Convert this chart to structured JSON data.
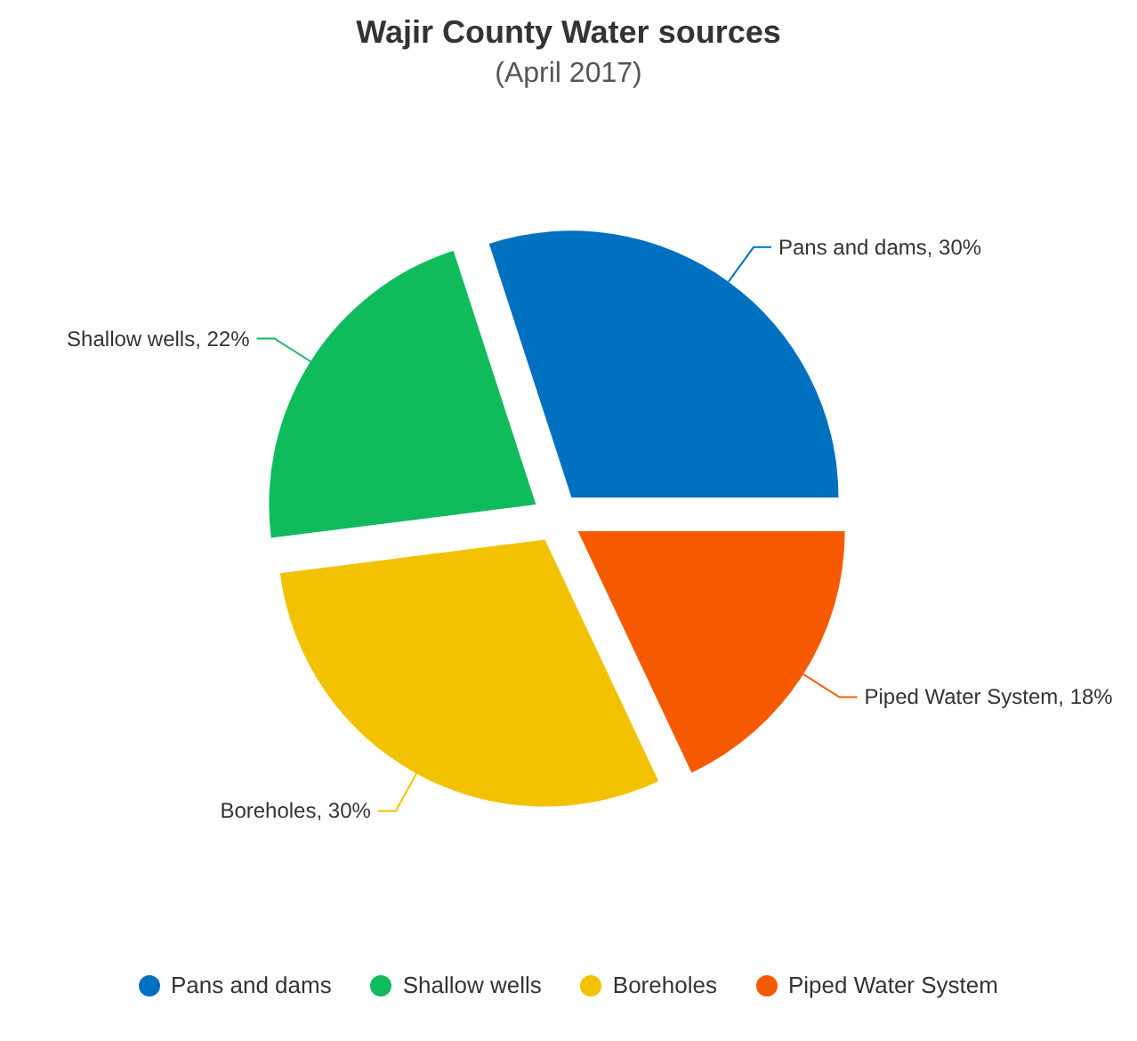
{
  "chart_data": {
    "type": "pie",
    "title": "Wajir County Water sources",
    "subtitle": "(April 2017)",
    "categories": [
      "Pans and dams",
      "Shallow wells",
      "Boreholes",
      "Piped Water System"
    ],
    "values": [
      30,
      22,
      30,
      18
    ],
    "colors": [
      "#0070c0",
      "#10bb5c",
      "#f2c200",
      "#f55a00"
    ],
    "value_labels": [
      "Pans and dams, 30%",
      "Shallow wells, 22%",
      "Boreholes, 30%",
      "Piped Water System, 18%"
    ],
    "legend": "bottom"
  }
}
